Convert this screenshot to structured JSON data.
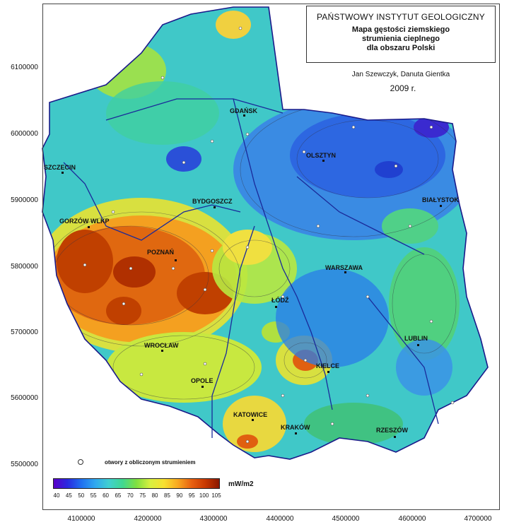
{
  "title": {
    "institute": "PAŃSTWOWY INSTYTUT GEOLOGICZNY",
    "line1": "Mapa gęstości ziemskiego",
    "line2": "strumienia cieplnego",
    "line3": "dla obszaru Polski"
  },
  "authors": "Jan Szewczyk, Danuta Gientka",
  "year": "2009 r.",
  "axes": {
    "y_ticks": [
      "6100000",
      "6000000",
      "5900000",
      "5800000",
      "5700000",
      "5600000",
      "5500000"
    ],
    "x_ticks": [
      "4100000",
      "4200000",
      "4300000",
      "4400000",
      "4500000",
      "4600000",
      "4700000"
    ]
  },
  "cities": {
    "gdansk": "GDAŃSK",
    "olsztyn": "OLSZTYN",
    "szczecin": "SZCZECIN",
    "bydgoszcz": "BYDGOSZCZ",
    "bialystok": "BIAŁYSTOK",
    "gorzow": "GORZÓW WLKP",
    "poznan": "POZNAŃ",
    "warszawa": "WARSZAWA",
    "lodz": "ŁÓDŹ",
    "lublin": "LUBLIN",
    "wroclaw": "WROCŁAW",
    "kielce": "KIELCE",
    "opole": "OPOLE",
    "katowice": "KATOWICE",
    "krakow": "KRAKÓW",
    "rzeszow": "RZESZÓW"
  },
  "legend": {
    "points_label": "otwory z obliczonym strumieniem",
    "unit": "mW/m2",
    "scale": [
      "40",
      "45",
      "50",
      "55",
      "60",
      "65",
      "70",
      "75",
      "80",
      "85",
      "90",
      "95",
      "100",
      "105"
    ]
  },
  "colors": {
    "low": "#2a2ae0",
    "mid": "#40d890",
    "high": "#c83800",
    "border": "#1a1a8a"
  }
}
